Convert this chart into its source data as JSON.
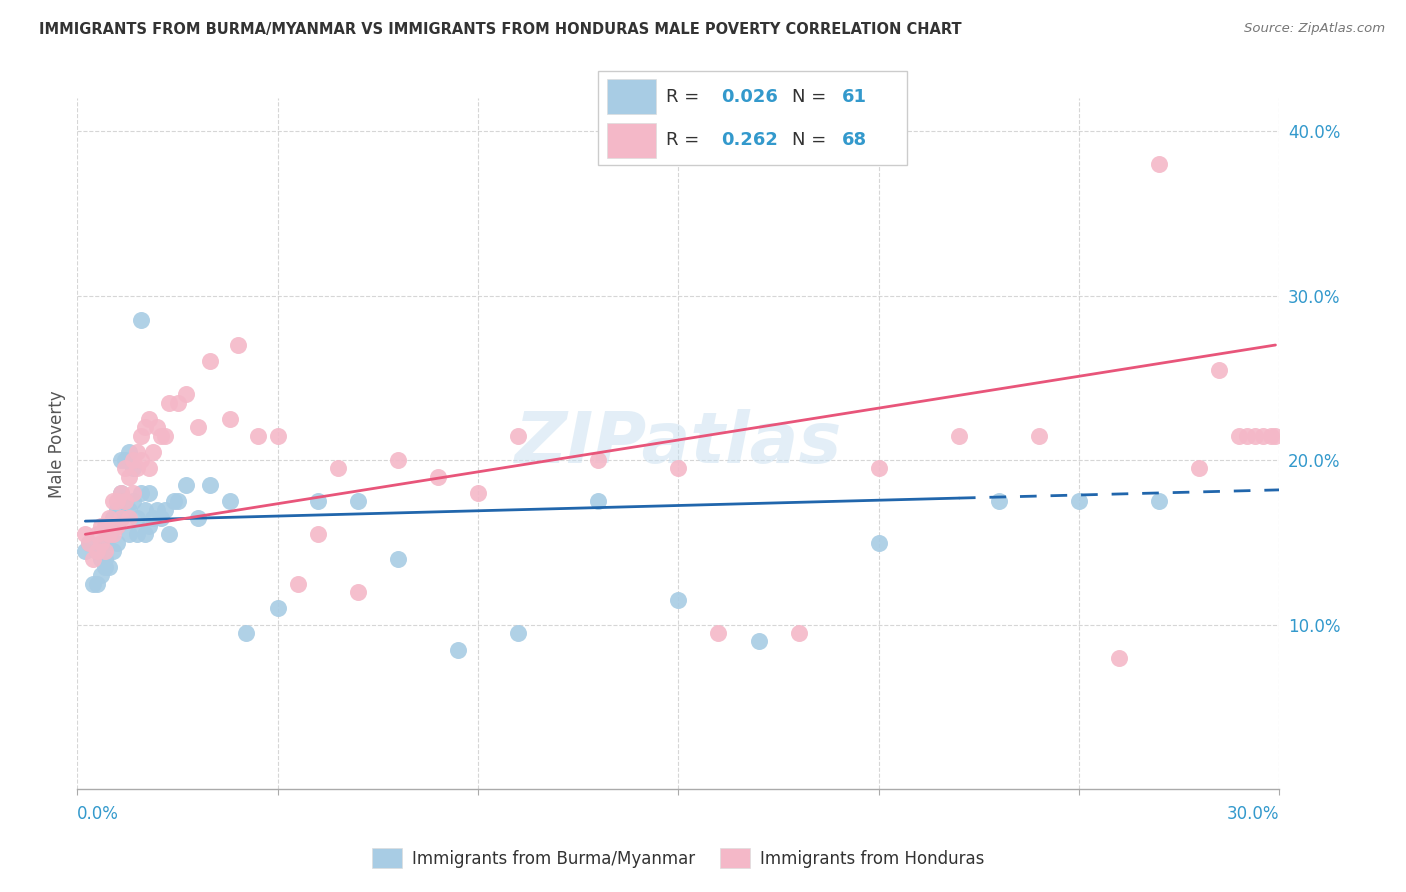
{
  "title": "IMMIGRANTS FROM BURMA/MYANMAR VS IMMIGRANTS FROM HONDURAS MALE POVERTY CORRELATION CHART",
  "source": "Source: ZipAtlas.com",
  "ylabel": "Male Poverty",
  "xlim": [
    0.0,
    0.3
  ],
  "ylim": [
    0.0,
    0.42
  ],
  "color_blue": "#a8cce4",
  "color_pink": "#f4b8c8",
  "color_blue_line": "#2166ac",
  "color_pink_line": "#e8557a",
  "color_blue_label": "#3399cc",
  "color_pink_label": "#cc3366",
  "watermark": "ZIPatlas",
  "blue_N": 61,
  "pink_N": 68,
  "blue_R": "0.026",
  "pink_R": "0.262",
  "blue_scatter_x": [
    0.002,
    0.003,
    0.004,
    0.005,
    0.005,
    0.006,
    0.006,
    0.007,
    0.007,
    0.007,
    0.008,
    0.008,
    0.008,
    0.009,
    0.009,
    0.01,
    0.01,
    0.01,
    0.011,
    0.011,
    0.011,
    0.012,
    0.012,
    0.013,
    0.013,
    0.013,
    0.014,
    0.014,
    0.015,
    0.015,
    0.016,
    0.016,
    0.017,
    0.017,
    0.018,
    0.018,
    0.019,
    0.02,
    0.021,
    0.022,
    0.023,
    0.024,
    0.025,
    0.027,
    0.03,
    0.033,
    0.038,
    0.042,
    0.05,
    0.06,
    0.07,
    0.08,
    0.095,
    0.11,
    0.13,
    0.15,
    0.17,
    0.2,
    0.23,
    0.25,
    0.27
  ],
  "blue_scatter_y": [
    0.145,
    0.15,
    0.125,
    0.145,
    0.125,
    0.14,
    0.13,
    0.15,
    0.14,
    0.135,
    0.16,
    0.155,
    0.135,
    0.165,
    0.145,
    0.16,
    0.17,
    0.15,
    0.18,
    0.2,
    0.165,
    0.2,
    0.175,
    0.17,
    0.205,
    0.155,
    0.175,
    0.195,
    0.155,
    0.165,
    0.18,
    0.285,
    0.17,
    0.155,
    0.18,
    0.16,
    0.165,
    0.17,
    0.165,
    0.17,
    0.155,
    0.175,
    0.175,
    0.185,
    0.165,
    0.185,
    0.175,
    0.095,
    0.11,
    0.175,
    0.175,
    0.14,
    0.085,
    0.095,
    0.175,
    0.115,
    0.09,
    0.15,
    0.175,
    0.175,
    0.175
  ],
  "pink_scatter_x": [
    0.002,
    0.003,
    0.004,
    0.005,
    0.005,
    0.006,
    0.006,
    0.007,
    0.007,
    0.008,
    0.008,
    0.009,
    0.009,
    0.01,
    0.01,
    0.011,
    0.011,
    0.012,
    0.012,
    0.013,
    0.013,
    0.014,
    0.014,
    0.015,
    0.015,
    0.016,
    0.016,
    0.017,
    0.018,
    0.018,
    0.019,
    0.02,
    0.021,
    0.022,
    0.023,
    0.025,
    0.027,
    0.03,
    0.033,
    0.038,
    0.04,
    0.045,
    0.05,
    0.055,
    0.06,
    0.065,
    0.07,
    0.08,
    0.09,
    0.1,
    0.11,
    0.13,
    0.15,
    0.16,
    0.18,
    0.2,
    0.22,
    0.24,
    0.26,
    0.27,
    0.28,
    0.285,
    0.29,
    0.292,
    0.294,
    0.296,
    0.298,
    0.299
  ],
  "pink_scatter_y": [
    0.155,
    0.15,
    0.14,
    0.155,
    0.145,
    0.15,
    0.16,
    0.145,
    0.16,
    0.155,
    0.165,
    0.155,
    0.175,
    0.16,
    0.175,
    0.165,
    0.18,
    0.175,
    0.195,
    0.19,
    0.165,
    0.2,
    0.18,
    0.205,
    0.195,
    0.215,
    0.2,
    0.22,
    0.225,
    0.195,
    0.205,
    0.22,
    0.215,
    0.215,
    0.235,
    0.235,
    0.24,
    0.22,
    0.26,
    0.225,
    0.27,
    0.215,
    0.215,
    0.125,
    0.155,
    0.195,
    0.12,
    0.2,
    0.19,
    0.18,
    0.215,
    0.2,
    0.195,
    0.095,
    0.095,
    0.195,
    0.215,
    0.215,
    0.08,
    0.38,
    0.195,
    0.255,
    0.215,
    0.215,
    0.215,
    0.215,
    0.215,
    0.215
  ],
  "blue_line_start": 0.002,
  "blue_line_solid_end": 0.22,
  "blue_line_end": 0.3,
  "pink_line_start": 0.002,
  "pink_line_end": 0.299,
  "blue_line_y0": 0.163,
  "blue_line_y1": 0.177,
  "blue_line_y_end": 0.182,
  "pink_line_y0": 0.155,
  "pink_line_y_end": 0.27
}
